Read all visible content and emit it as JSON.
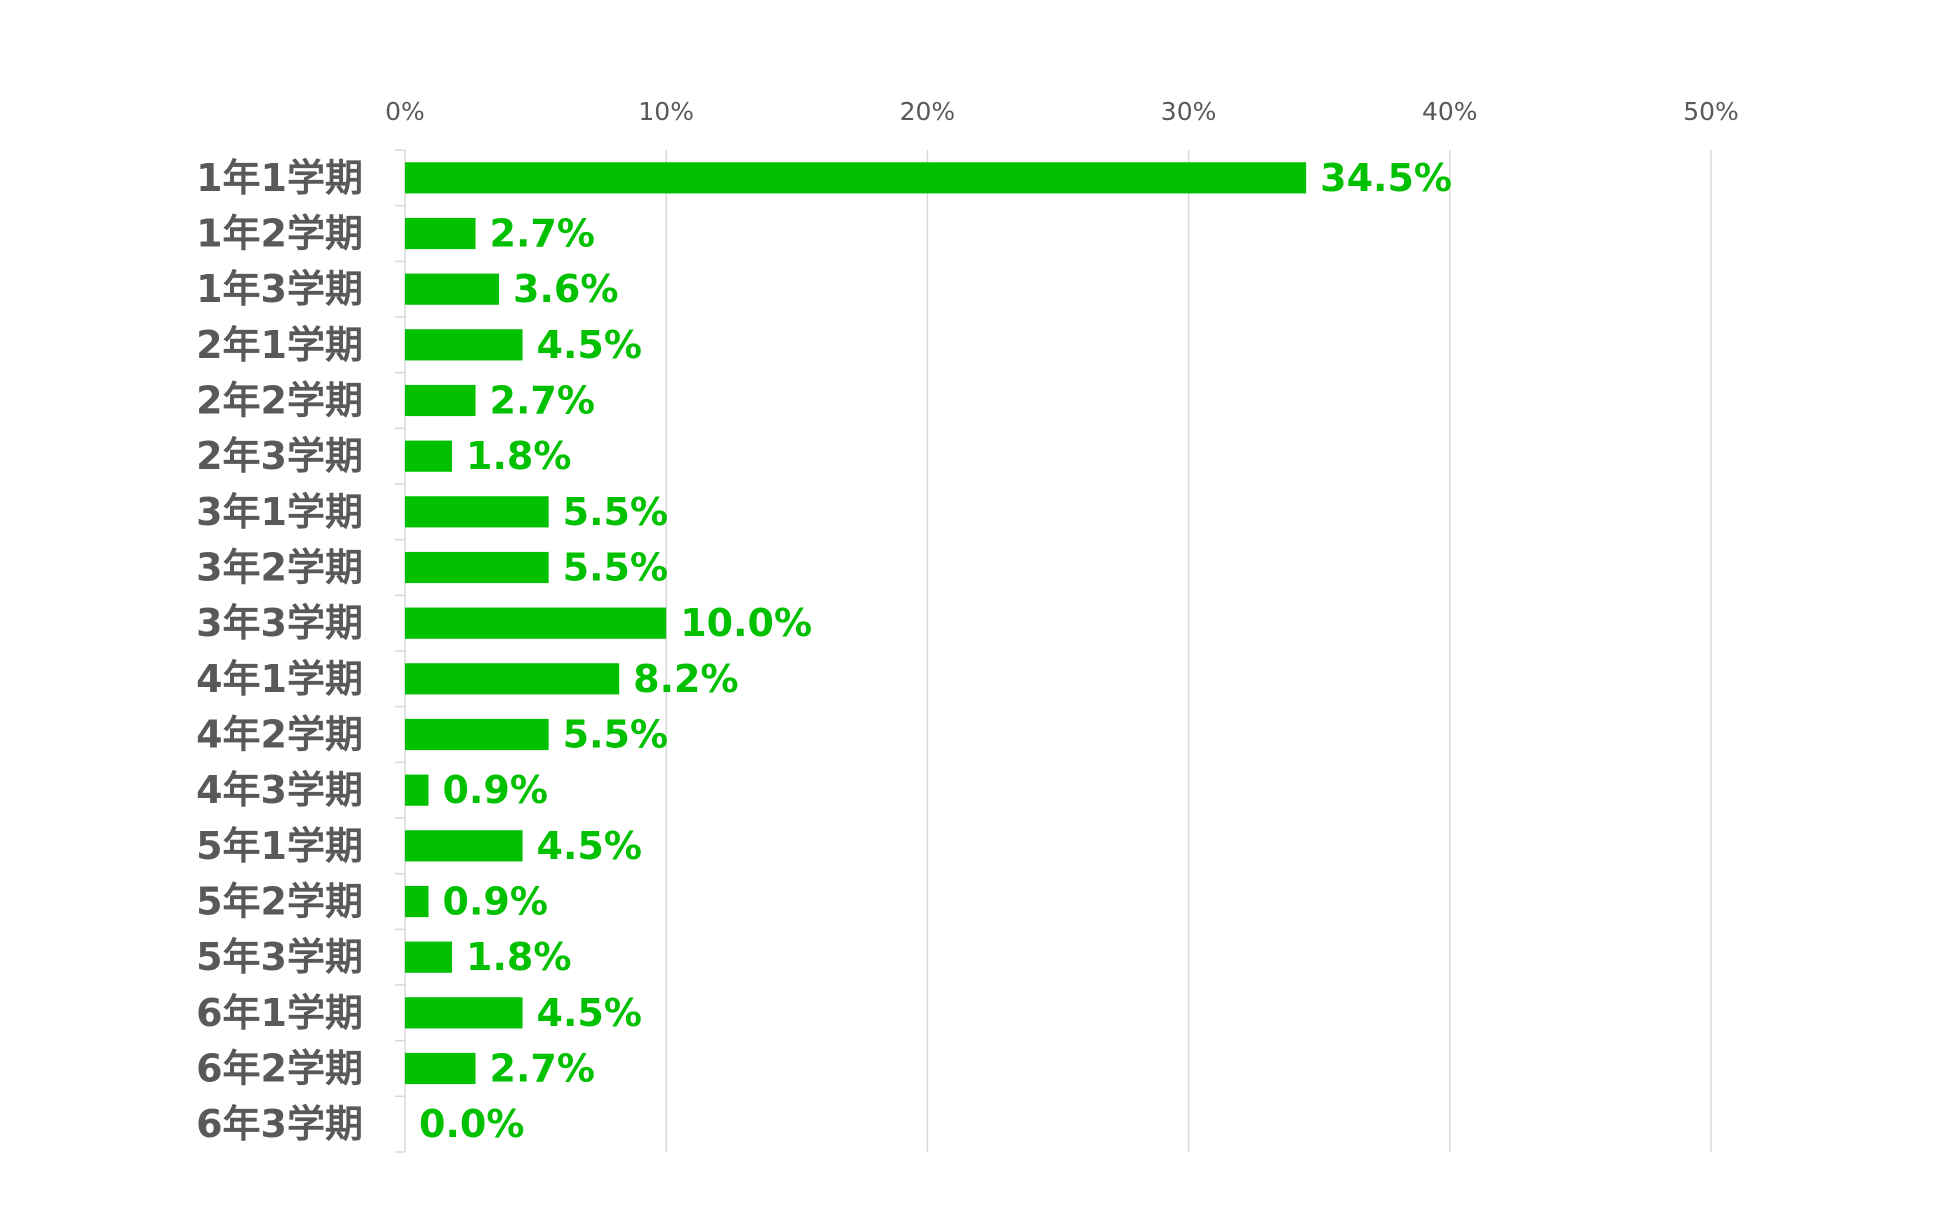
{
  "chart_data": {
    "type": "bar",
    "orientation": "horizontal",
    "categories": [
      "1年1学期",
      "1年2学期",
      "1年3学期",
      "2年1学期",
      "2年2学期",
      "2年3学期",
      "3年1学期",
      "3年2学期",
      "3年3学期",
      "4年1学期",
      "4年2学期",
      "4年3学期",
      "5年1学期",
      "5年2学期",
      "5年3学期",
      "6年1学期",
      "6年2学期",
      "6年3学期"
    ],
    "values": [
      34.5,
      2.7,
      3.6,
      4.5,
      2.7,
      1.8,
      5.5,
      5.5,
      10.0,
      8.2,
      5.5,
      0.9,
      4.5,
      0.9,
      1.8,
      4.5,
      2.7,
      0.0
    ],
    "value_labels": [
      "34.5%",
      "2.7%",
      "3.6%",
      "4.5%",
      "2.7%",
      "1.8%",
      "5.5%",
      "5.5%",
      "10.0%",
      "8.2%",
      "5.5%",
      "0.9%",
      "4.5%",
      "0.9%",
      "1.8%",
      "4.5%",
      "2.7%",
      "0.0%"
    ],
    "title": "",
    "xlabel": "",
    "ylabel": "",
    "xlim": [
      0,
      50
    ],
    "x_ticks": [
      0,
      10,
      20,
      30,
      40,
      50
    ],
    "x_tick_labels": [
      "0%",
      "10%",
      "20%",
      "30%",
      "40%",
      "50%"
    ],
    "x_axis_position": "top",
    "grid": true,
    "legend": "none",
    "bar_color": "#00c000",
    "label_color": "#00c000"
  }
}
